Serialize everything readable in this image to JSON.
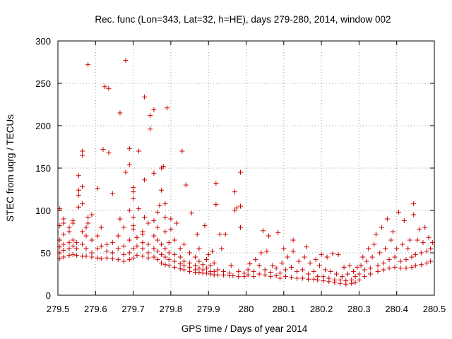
{
  "chart_data": {
    "type": "scatter",
    "title": "Rec. func (Lon=343, Lat=32, h=HE), days 279-280, 2014, window 002",
    "xlabel": "GPS time / Days of year 2014",
    "ylabel": "STEC from uqrg / TECUs",
    "xlim": [
      279.5,
      280.5
    ],
    "ylim": [
      0,
      300
    ],
    "xticks": [
      "279.5",
      "279.6",
      "279.7",
      "279.8",
      "279.9",
      "280",
      "280.1",
      "280.2",
      "280.3",
      "280.4",
      "280.5"
    ],
    "yticks": [
      "0",
      "50",
      "100",
      "150",
      "200",
      "250",
      "300"
    ],
    "grid": true,
    "marker": "plus",
    "color": "#cc0000",
    "points": [
      [
        279.505,
        43
      ],
      [
        279.505,
        50
      ],
      [
        279.505,
        57
      ],
      [
        279.505,
        65
      ],
      [
        279.505,
        82
      ],
      [
        279.505,
        102
      ],
      [
        279.515,
        45
      ],
      [
        279.515,
        53
      ],
      [
        279.515,
        60
      ],
      [
        279.515,
        72
      ],
      [
        279.515,
        85
      ],
      [
        279.515,
        90
      ],
      [
        279.53,
        47
      ],
      [
        279.53,
        55
      ],
      [
        279.53,
        62
      ],
      [
        279.53,
        75
      ],
      [
        279.53,
        80
      ],
      [
        279.54,
        48
      ],
      [
        279.54,
        58
      ],
      [
        279.54,
        65
      ],
      [
        279.54,
        85
      ],
      [
        279.54,
        88
      ],
      [
        279.55,
        47
      ],
      [
        279.55,
        55
      ],
      [
        279.55,
        62
      ],
      [
        279.555,
        104
      ],
      [
        279.555,
        118
      ],
      [
        279.555,
        124
      ],
      [
        279.555,
        141
      ],
      [
        279.565,
        46
      ],
      [
        279.565,
        60
      ],
      [
        279.565,
        75
      ],
      [
        279.565,
        108
      ],
      [
        279.565,
        128
      ],
      [
        279.565,
        165
      ],
      [
        279.565,
        170
      ],
      [
        279.575,
        46
      ],
      [
        279.575,
        55
      ],
      [
        279.575,
        70
      ],
      [
        279.575,
        80
      ],
      [
        279.58,
        85
      ],
      [
        279.58,
        92
      ],
      [
        279.58,
        272
      ],
      [
        279.59,
        45
      ],
      [
        279.59,
        50
      ],
      [
        279.59,
        65
      ],
      [
        279.59,
        95
      ],
      [
        279.605,
        44
      ],
      [
        279.605,
        55
      ],
      [
        279.605,
        70
      ],
      [
        279.605,
        126
      ],
      [
        279.615,
        43
      ],
      [
        279.615,
        58
      ],
      [
        279.615,
        80
      ],
      [
        279.62,
        172
      ],
      [
        279.625,
        246
      ],
      [
        279.63,
        44
      ],
      [
        279.63,
        52
      ],
      [
        279.63,
        60
      ],
      [
        279.635,
        168
      ],
      [
        279.635,
        244
      ],
      [
        279.645,
        43
      ],
      [
        279.645,
        50
      ],
      [
        279.645,
        62
      ],
      [
        279.645,
        120
      ],
      [
        279.66,
        42
      ],
      [
        279.66,
        55
      ],
      [
        279.66,
        70
      ],
      [
        279.665,
        90
      ],
      [
        279.665,
        215
      ],
      [
        279.675,
        40
      ],
      [
        279.675,
        48
      ],
      [
        279.675,
        58
      ],
      [
        279.675,
        80
      ],
      [
        279.68,
        145
      ],
      [
        279.68,
        277
      ],
      [
        279.69,
        42
      ],
      [
        279.69,
        50
      ],
      [
        279.69,
        65
      ],
      [
        279.69,
        100
      ],
      [
        279.69,
        154
      ],
      [
        279.69,
        173
      ],
      [
        279.7,
        44
      ],
      [
        279.7,
        55
      ],
      [
        279.7,
        78
      ],
      [
        279.7,
        82
      ],
      [
        279.7,
        92
      ],
      [
        279.7,
        114
      ],
      [
        279.7,
        122
      ],
      [
        279.7,
        127
      ],
      [
        279.71,
        47
      ],
      [
        279.71,
        58
      ],
      [
        279.71,
        68
      ],
      [
        279.715,
        102
      ],
      [
        279.715,
        170
      ],
      [
        279.725,
        46
      ],
      [
        279.725,
        55
      ],
      [
        279.725,
        62
      ],
      [
        279.725,
        72
      ],
      [
        279.725,
        75
      ],
      [
        279.73,
        92
      ],
      [
        279.73,
        136
      ],
      [
        279.73,
        234
      ],
      [
        279.74,
        44
      ],
      [
        279.74,
        50
      ],
      [
        279.74,
        60
      ],
      [
        279.74,
        85
      ],
      [
        279.745,
        196
      ],
      [
        279.745,
        212
      ],
      [
        279.755,
        45
      ],
      [
        279.755,
        55
      ],
      [
        279.755,
        70
      ],
      [
        279.755,
        88
      ],
      [
        279.755,
        144
      ],
      [
        279.755,
        219
      ],
      [
        279.765,
        42
      ],
      [
        279.765,
        52
      ],
      [
        279.765,
        65
      ],
      [
        279.765,
        80
      ],
      [
        279.765,
        98
      ],
      [
        279.77,
        106
      ],
      [
        279.775,
        38
      ],
      [
        279.775,
        48
      ],
      [
        279.775,
        60
      ],
      [
        279.775,
        124
      ],
      [
        279.775,
        150
      ],
      [
        279.78,
        152
      ],
      [
        279.785,
        36
      ],
      [
        279.785,
        45
      ],
      [
        279.785,
        55
      ],
      [
        279.785,
        75
      ],
      [
        279.785,
        92
      ],
      [
        279.785,
        108
      ],
      [
        279.79,
        221
      ],
      [
        279.795,
        35
      ],
      [
        279.795,
        42
      ],
      [
        279.795,
        50
      ],
      [
        279.795,
        62
      ],
      [
        279.8,
        78
      ],
      [
        279.8,
        90
      ],
      [
        279.81,
        33
      ],
      [
        279.81,
        40
      ],
      [
        279.81,
        48
      ],
      [
        279.81,
        65
      ],
      [
        279.815,
        85
      ],
      [
        279.825,
        31
      ],
      [
        279.825,
        37
      ],
      [
        279.825,
        45
      ],
      [
        279.825,
        55
      ],
      [
        279.83,
        170
      ],
      [
        279.835,
        30
      ],
      [
        279.835,
        35
      ],
      [
        279.835,
        40
      ],
      [
        279.835,
        60
      ],
      [
        279.84,
        130
      ],
      [
        279.85,
        28
      ],
      [
        279.85,
        33
      ],
      [
        279.85,
        38
      ],
      [
        279.85,
        50
      ],
      [
        279.855,
        97
      ],
      [
        279.865,
        27
      ],
      [
        279.865,
        30
      ],
      [
        279.865,
        35
      ],
      [
        279.865,
        45
      ],
      [
        279.87,
        72
      ],
      [
        279.875,
        27
      ],
      [
        279.875,
        32
      ],
      [
        279.875,
        40
      ],
      [
        279.875,
        55
      ],
      [
        279.885,
        26
      ],
      [
        279.885,
        30
      ],
      [
        279.885,
        36
      ],
      [
        279.89,
        82
      ],
      [
        279.895,
        26
      ],
      [
        279.895,
        32
      ],
      [
        279.895,
        42
      ],
      [
        279.9,
        48
      ],
      [
        279.905,
        25
      ],
      [
        279.905,
        28
      ],
      [
        279.905,
        35
      ],
      [
        279.91,
        52
      ],
      [
        279.915,
        24
      ],
      [
        279.915,
        28
      ],
      [
        279.915,
        38
      ],
      [
        279.92,
        107
      ],
      [
        279.92,
        132
      ],
      [
        279.925,
        24
      ],
      [
        279.925,
        30
      ],
      [
        279.93,
        72
      ],
      [
        279.935,
        55
      ],
      [
        279.94,
        24
      ],
      [
        279.94,
        28
      ],
      [
        279.945,
        72
      ],
      [
        279.955,
        23
      ],
      [
        279.955,
        26
      ],
      [
        279.96,
        35
      ],
      [
        279.965,
        23
      ],
      [
        279.97,
        100
      ],
      [
        279.97,
        122
      ],
      [
        279.975,
        103
      ],
      [
        279.98,
        22
      ],
      [
        279.98,
        28
      ],
      [
        279.985,
        80
      ],
      [
        279.985,
        105
      ],
      [
        279.985,
        145
      ],
      [
        279.995,
        22
      ],
      [
        279.995,
        26
      ],
      [
        280.005,
        24
      ],
      [
        280.005,
        30
      ],
      [
        280.01,
        37
      ],
      [
        280.02,
        22
      ],
      [
        280.02,
        28
      ],
      [
        280.025,
        42
      ],
      [
        280.035,
        25
      ],
      [
        280.035,
        35
      ],
      [
        280.04,
        50
      ],
      [
        280.045,
        76
      ],
      [
        280.05,
        24
      ],
      [
        280.05,
        30
      ],
      [
        280.055,
        52
      ],
      [
        280.06,
        70
      ],
      [
        280.065,
        22
      ],
      [
        280.065,
        27
      ],
      [
        280.07,
        35
      ],
      [
        280.08,
        23
      ],
      [
        280.08,
        32
      ],
      [
        280.085,
        74
      ],
      [
        280.09,
        20
      ],
      [
        280.09,
        26
      ],
      [
        280.095,
        38
      ],
      [
        280.1,
        55
      ],
      [
        280.105,
        22
      ],
      [
        280.105,
        30
      ],
      [
        280.11,
        45
      ],
      [
        280.12,
        21
      ],
      [
        280.12,
        33
      ],
      [
        280.125,
        52
      ],
      [
        280.125,
        65
      ],
      [
        280.135,
        20
      ],
      [
        280.135,
        28
      ],
      [
        280.14,
        40
      ],
      [
        280.15,
        20
      ],
      [
        280.15,
        30
      ],
      [
        280.155,
        45
      ],
      [
        280.16,
        57
      ],
      [
        280.165,
        19
      ],
      [
        280.165,
        25
      ],
      [
        280.17,
        38
      ],
      [
        280.18,
        19
      ],
      [
        280.18,
        28
      ],
      [
        280.185,
        42
      ],
      [
        280.19,
        18
      ],
      [
        280.19,
        22
      ],
      [
        280.195,
        35
      ],
      [
        280.2,
        48
      ],
      [
        280.205,
        17
      ],
      [
        280.205,
        22
      ],
      [
        280.21,
        30
      ],
      [
        280.215,
        45
      ],
      [
        280.22,
        16
      ],
      [
        280.22,
        20
      ],
      [
        280.225,
        28
      ],
      [
        280.23,
        49
      ],
      [
        280.235,
        15
      ],
      [
        280.235,
        18
      ],
      [
        280.24,
        25
      ],
      [
        280.245,
        48
      ],
      [
        280.25,
        14
      ],
      [
        280.25,
        18
      ],
      [
        280.255,
        22
      ],
      [
        280.26,
        33
      ],
      [
        280.265,
        13
      ],
      [
        280.265,
        17
      ],
      [
        280.27,
        25
      ],
      [
        280.275,
        35
      ],
      [
        280.28,
        14
      ],
      [
        280.28,
        18
      ],
      [
        280.285,
        28
      ],
      [
        280.29,
        15
      ],
      [
        280.29,
        22
      ],
      [
        280.295,
        33
      ],
      [
        280.3,
        18
      ],
      [
        280.3,
        25
      ],
      [
        280.305,
        35
      ],
      [
        280.31,
        45
      ],
      [
        280.315,
        22
      ],
      [
        280.315,
        30
      ],
      [
        280.32,
        40
      ],
      [
        280.325,
        55
      ],
      [
        280.33,
        25
      ],
      [
        280.33,
        32
      ],
      [
        280.335,
        45
      ],
      [
        280.34,
        60
      ],
      [
        280.345,
        72
      ],
      [
        280.35,
        28
      ],
      [
        280.35,
        35
      ],
      [
        280.355,
        50
      ],
      [
        280.36,
        80
      ],
      [
        280.365,
        30
      ],
      [
        280.365,
        38
      ],
      [
        280.37,
        55
      ],
      [
        280.375,
        90
      ],
      [
        280.38,
        32
      ],
      [
        280.38,
        42
      ],
      [
        280.385,
        65
      ],
      [
        280.39,
        75
      ],
      [
        280.395,
        33
      ],
      [
        280.395,
        45
      ],
      [
        280.4,
        55
      ],
      [
        280.405,
        98
      ],
      [
        280.41,
        32
      ],
      [
        280.41,
        40
      ],
      [
        280.415,
        60
      ],
      [
        280.42,
        88
      ],
      [
        280.425,
        32
      ],
      [
        280.425,
        42
      ],
      [
        280.43,
        55
      ],
      [
        280.435,
        65
      ],
      [
        280.44,
        33
      ],
      [
        280.44,
        45
      ],
      [
        280.445,
        95
      ],
      [
        280.445,
        108
      ],
      [
        280.45,
        35
      ],
      [
        280.45,
        48
      ],
      [
        280.455,
        65
      ],
      [
        280.46,
        78
      ],
      [
        280.465,
        36
      ],
      [
        280.465,
        50
      ],
      [
        280.47,
        62
      ],
      [
        280.475,
        80
      ],
      [
        280.48,
        38
      ],
      [
        280.48,
        52
      ],
      [
        280.485,
        68
      ],
      [
        280.49,
        40
      ],
      [
        280.49,
        55
      ],
      [
        280.495,
        62
      ]
    ]
  }
}
